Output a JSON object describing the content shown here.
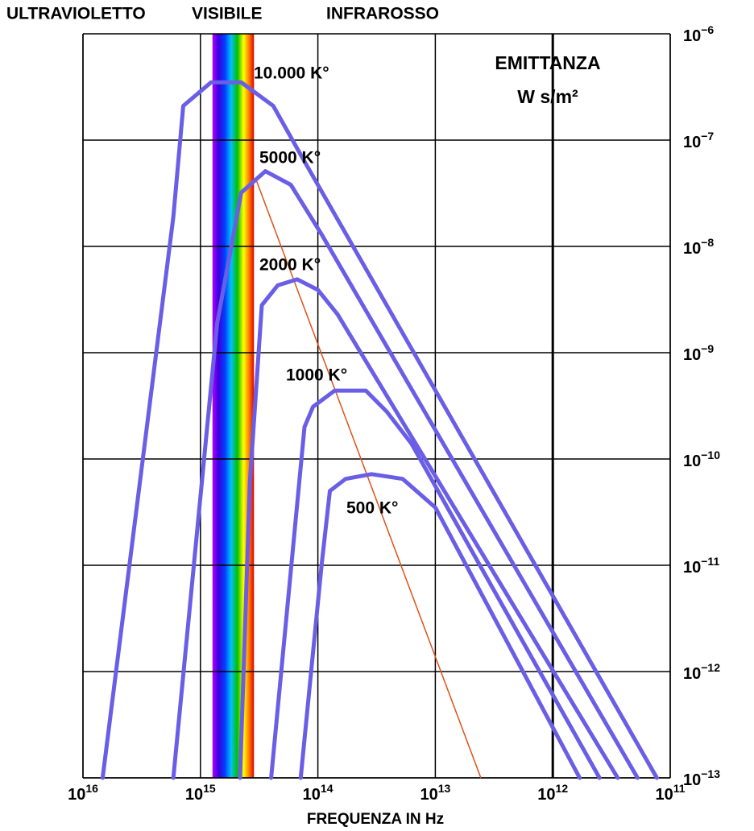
{
  "chart_data": {
    "type": "line",
    "top_labels": [
      "ULTRAVIOLETTO",
      "VISIBILE",
      "INFRAROSSO"
    ],
    "y_label": [
      "EMITTANZA",
      "W s/m²"
    ],
    "x_label": "FREQUENZA IN Hz",
    "log_x": true,
    "log_y": true,
    "grid": true,
    "xlim": [
      1e+16,
      100000000000.0
    ],
    "ylim": [
      1e-13,
      1e-06
    ],
    "xticks": [
      {
        "value": 1e+16,
        "base": "10",
        "exponent": "16"
      },
      {
        "value": 1000000000000000.0,
        "base": "10",
        "exponent": "15"
      },
      {
        "value": 100000000000000.0,
        "base": "10",
        "exponent": "14"
      },
      {
        "value": 10000000000000.0,
        "base": "10",
        "exponent": "13"
      },
      {
        "value": 1000000000000.0,
        "base": "10",
        "exponent": "12"
      },
      {
        "value": 100000000000.0,
        "base": "10",
        "exponent": "11"
      }
    ],
    "yticks": [
      {
        "value": 1e-06,
        "base": "10",
        "exponent": "−6"
      },
      {
        "value": 1e-07,
        "base": "10",
        "exponent": "−7"
      },
      {
        "value": 1e-08,
        "base": "10",
        "exponent": "−8"
      },
      {
        "value": 1e-09,
        "base": "10",
        "exponent": "−9"
      },
      {
        "value": 1e-10,
        "base": "10",
        "exponent": "−10"
      },
      {
        "value": 1e-11,
        "base": "10",
        "exponent": "−11"
      },
      {
        "value": 1e-12,
        "base": "10",
        "exponent": "−12"
      },
      {
        "value": 1e-13,
        "base": "10",
        "exponent": "−13"
      }
    ],
    "visible_band": [
      790000000000000.0,
      350000000000000.0
    ],
    "series": [
      {
        "name": "10.000 K°",
        "color": "#6a5ee6",
        "x": [
          6800000000000000.0,
          1700000000000000.0,
          1400000000000000.0,
          810000000000000.0,
          450000000000000.0,
          240000000000000.0,
          130000000000000.0,
          130000000000.0
        ],
        "values": [
          1e-13,
          1.9e-08,
          2.1e-07,
          3.5e-07,
          3.5e-07,
          2.1e-07,
          6.3e-08,
          1e-13
        ]
      },
      {
        "name": "5000 K°",
        "color": "#6a5ee6",
        "x": [
          1700000000000000.0,
          720000000000000.0,
          450000000000000.0,
          280000000000000.0,
          170000000000000.0,
          93000000000000.0,
          190000000000.0
        ],
        "values": [
          1e-13,
          1.9e-09,
          3.2e-08,
          5.1e-08,
          3.8e-08,
          1.3e-08,
          1e-13
        ]
      },
      {
        "name": "2000 K°",
        "color": "#6a5ee6",
        "x": [
          460000000000000.0,
          380000000000000.0,
          300000000000000.0,
          220000000000000.0,
          150000000000000.0,
          100000000000000.0,
          68000000000000.0,
          280000000000.0
        ],
        "values": [
          1e-13,
          5.9e-11,
          2.8e-09,
          4.3e-09,
          4.9e-09,
          3.9e-09,
          2.3e-09,
          1e-13
        ]
      },
      {
        "name": "1000 K°",
        "color": "#6a5ee6",
        "x": [
          250000000000000.0,
          130000000000000.0,
          110000000000000.0,
          72000000000000.0,
          39000000000000.0,
          26000000000000.0,
          16000000000000.0,
          400000000000.0
        ],
        "values": [
          1e-13,
          2e-10,
          3.1e-10,
          4.4e-10,
          4.4e-10,
          2.8e-10,
          1.4e-10,
          1e-13
        ]
      },
      {
        "name": "500 K°",
        "color": "#6a5ee6",
        "x": [
          140000000000000.0,
          93000000000000.0,
          79000000000000.0,
          58000000000000.0,
          35000000000000.0,
          19000000000000.0,
          10000000000000.0,
          590000000000.0
        ],
        "values": [
          1e-13,
          1e-11,
          5e-11,
          6.5e-11,
          7.2e-11,
          6.5e-11,
          3.5e-11,
          1e-13
        ]
      }
    ],
    "wien_line": {
      "color": "#e0501a",
      "x": [
        340000000000000.0,
        4100000000000.0
      ],
      "values": [
        4.4e-08,
        1e-13
      ]
    }
  }
}
